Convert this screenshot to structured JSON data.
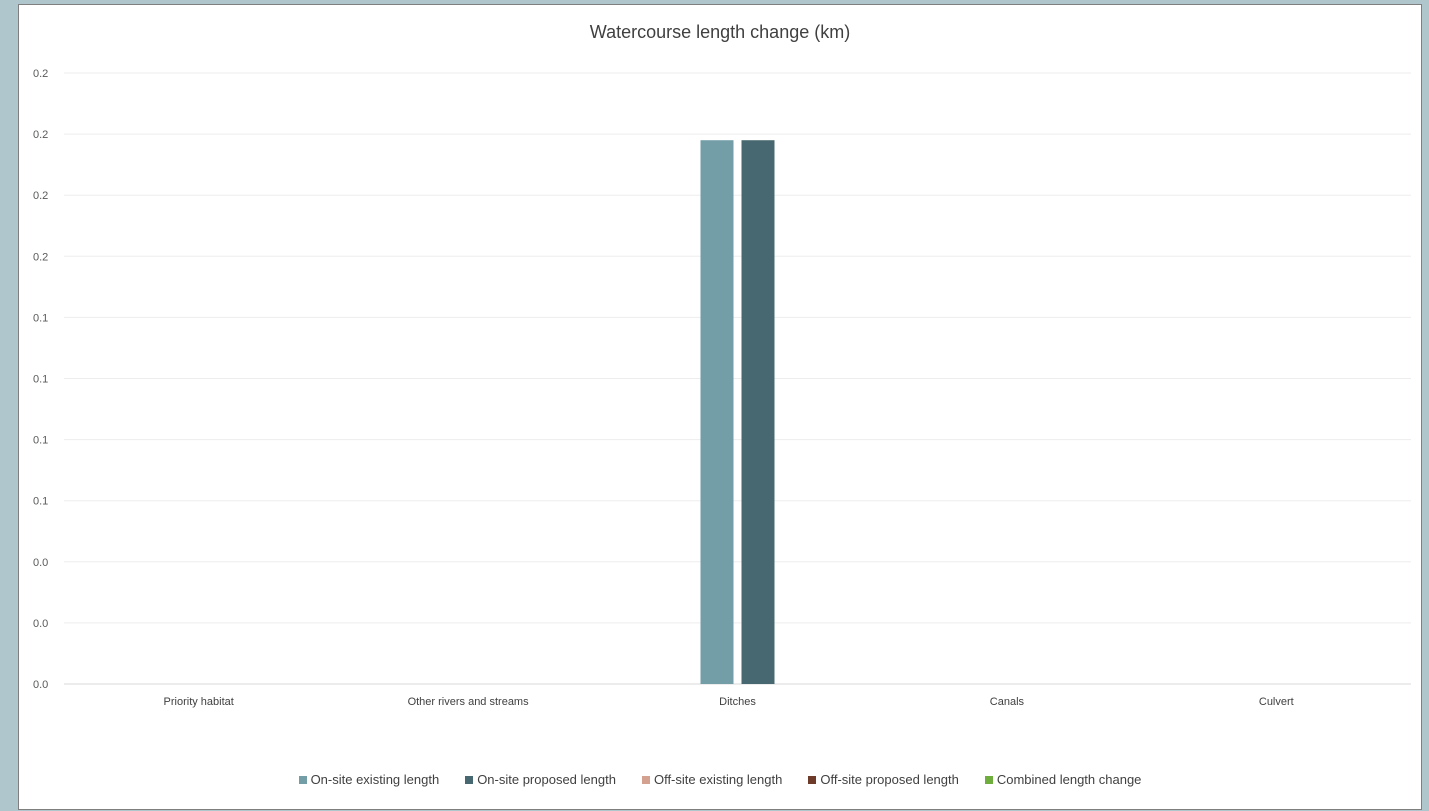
{
  "chart_data": {
    "type": "bar",
    "title": "Watercourse length change (km)",
    "xlabel": "",
    "ylabel": "",
    "categories": [
      "Priority habitat",
      "Other rivers and streams",
      "Ditches",
      "Canals",
      "Culvert"
    ],
    "y_tick_labels": [
      "0.0",
      "0.0",
      "0.0",
      "0.1",
      "0.1",
      "0.1",
      "0.1",
      "0.2",
      "0.2",
      "0.2"
    ],
    "ylim": [
      0,
      0.2
    ],
    "grid": true,
    "legend_position": "bottom",
    "series": [
      {
        "name": "On-site existing length",
        "color": "#739da7",
        "values": [
          0,
          0,
          0.178,
          0,
          0
        ]
      },
      {
        "name": "On-site proposed length",
        "color": "#476870",
        "values": [
          0,
          0,
          0.178,
          0,
          0
        ]
      },
      {
        "name": "Off-site existing length",
        "color": "#d4a190",
        "values": [
          0,
          0,
          0,
          0,
          0
        ]
      },
      {
        "name": "Off-site proposed length",
        "color": "#6e3b2a",
        "values": [
          0,
          0,
          0,
          0,
          0
        ]
      },
      {
        "name": "Combined length change",
        "color": "#6fae3c",
        "values": [
          0,
          0,
          0,
          0,
          0
        ]
      }
    ]
  }
}
